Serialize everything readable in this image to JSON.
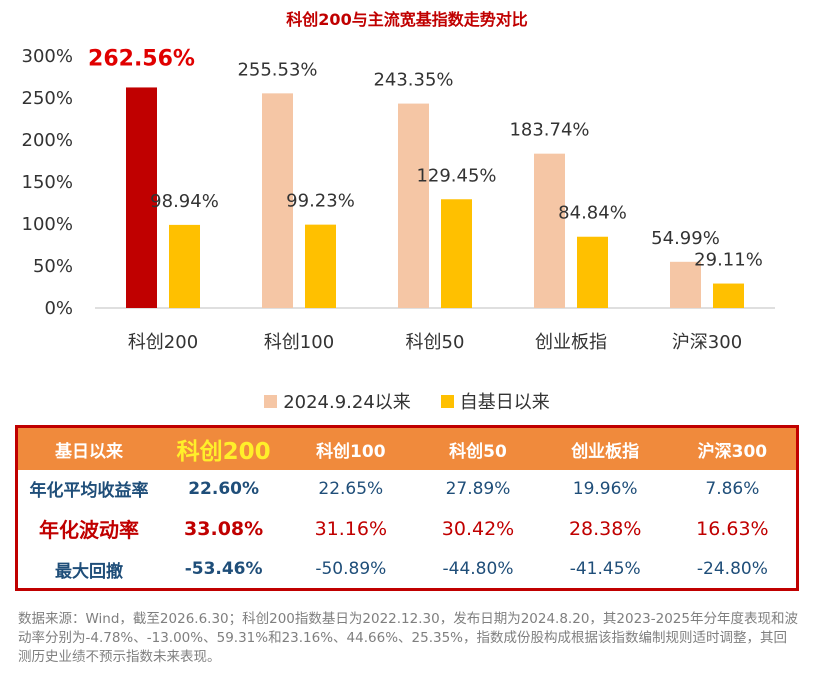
{
  "chart_data": {
    "type": "bar",
    "title": "科创200与主流宽基指数走势对比",
    "categories": [
      "科创200",
      "科创100",
      "科创50",
      "创业板指",
      "沪深300"
    ],
    "series": [
      {
        "name": "2024.9.24以来",
        "values": [
          262.56,
          255.53,
          243.35,
          183.74,
          54.99
        ],
        "labels": [
          "262.56%",
          "255.53%",
          "243.35%",
          "183.74%",
          "54.99%"
        ]
      },
      {
        "name": "自基日以来",
        "values": [
          98.94,
          99.23,
          129.45,
          84.84,
          29.11
        ],
        "labels": [
          "98.94%",
          "99.23%",
          "129.45%",
          "84.84%",
          "29.11%"
        ]
      }
    ],
    "yticks": [
      "0%",
      "50%",
      "100%",
      "150%",
      "200%",
      "250%",
      "300%"
    ],
    "ylim": [
      0,
      300
    ],
    "highlight_category": "科创200",
    "legend_position": "bottom",
    "grid": false
  },
  "colors": {
    "series1": "#f5c6a5",
    "series2": "#ffc000",
    "highlight": "#c00000",
    "header_bg": "#f08a3c",
    "border": "#c00000"
  },
  "table": {
    "header": [
      "基日以来",
      "科创200",
      "科创100",
      "科创50",
      "创业板指",
      "沪深300"
    ],
    "rows": [
      {
        "label": "年化平均收益率",
        "values": [
          "22.60%",
          "22.65%",
          "27.89%",
          "19.96%",
          "7.86%"
        ]
      },
      {
        "label": "年化波动率",
        "values": [
          "33.08%",
          "31.16%",
          "30.42%",
          "28.38%",
          "16.63%"
        ]
      },
      {
        "label": "最大回撤",
        "values": [
          "-53.46%",
          "-50.89%",
          "-44.80%",
          "-41.45%",
          "-24.80%"
        ]
      }
    ]
  },
  "note": "数据来源：Wind，截至2026.6.30；科创200指数基日为2022.12.30，发布日期为2024.8.20，其2023-2025年分年度表现和波动率分别为-4.78%、-13.00%、59.31%和23.16%、44.66%、25.35%，指数成份股构成根据该指数编制规则适时调整，其回测历史业绩不预示指数未来表现。"
}
